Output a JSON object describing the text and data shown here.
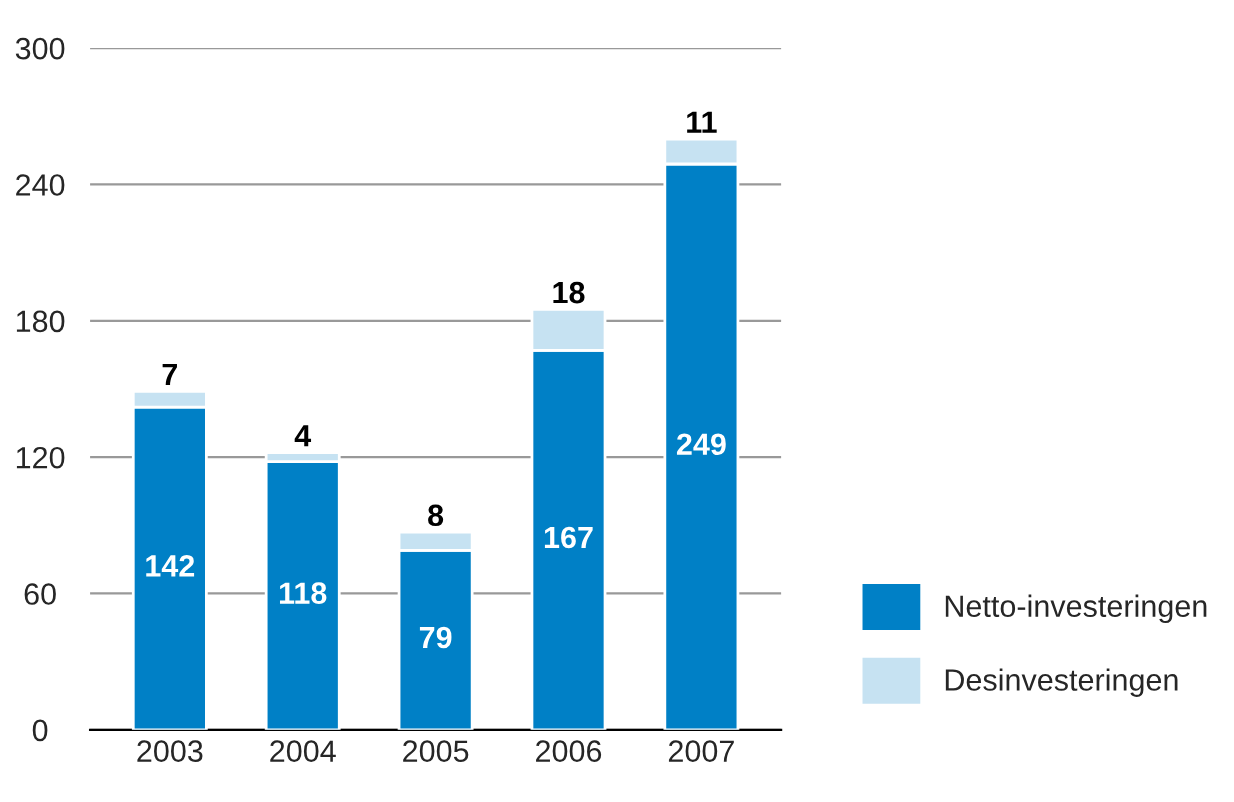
{
  "chart_data": {
    "type": "bar",
    "stacked": true,
    "categories": [
      "2003",
      "2004",
      "2005",
      "2006",
      "2007"
    ],
    "series": [
      {
        "name": "Netto-investeringen",
        "color": "#0080c6",
        "values": [
          142,
          118,
          79,
          167,
          249
        ]
      },
      {
        "name": "Desinvesteringen",
        "color": "#c6e2f2",
        "values": [
          7,
          4,
          8,
          18,
          11
        ]
      }
    ],
    "ylim": [
      0,
      300
    ],
    "yticks": [
      0,
      60,
      120,
      180,
      240,
      300
    ],
    "grid": "y",
    "legend": "bottom right",
    "data_labels": true
  }
}
